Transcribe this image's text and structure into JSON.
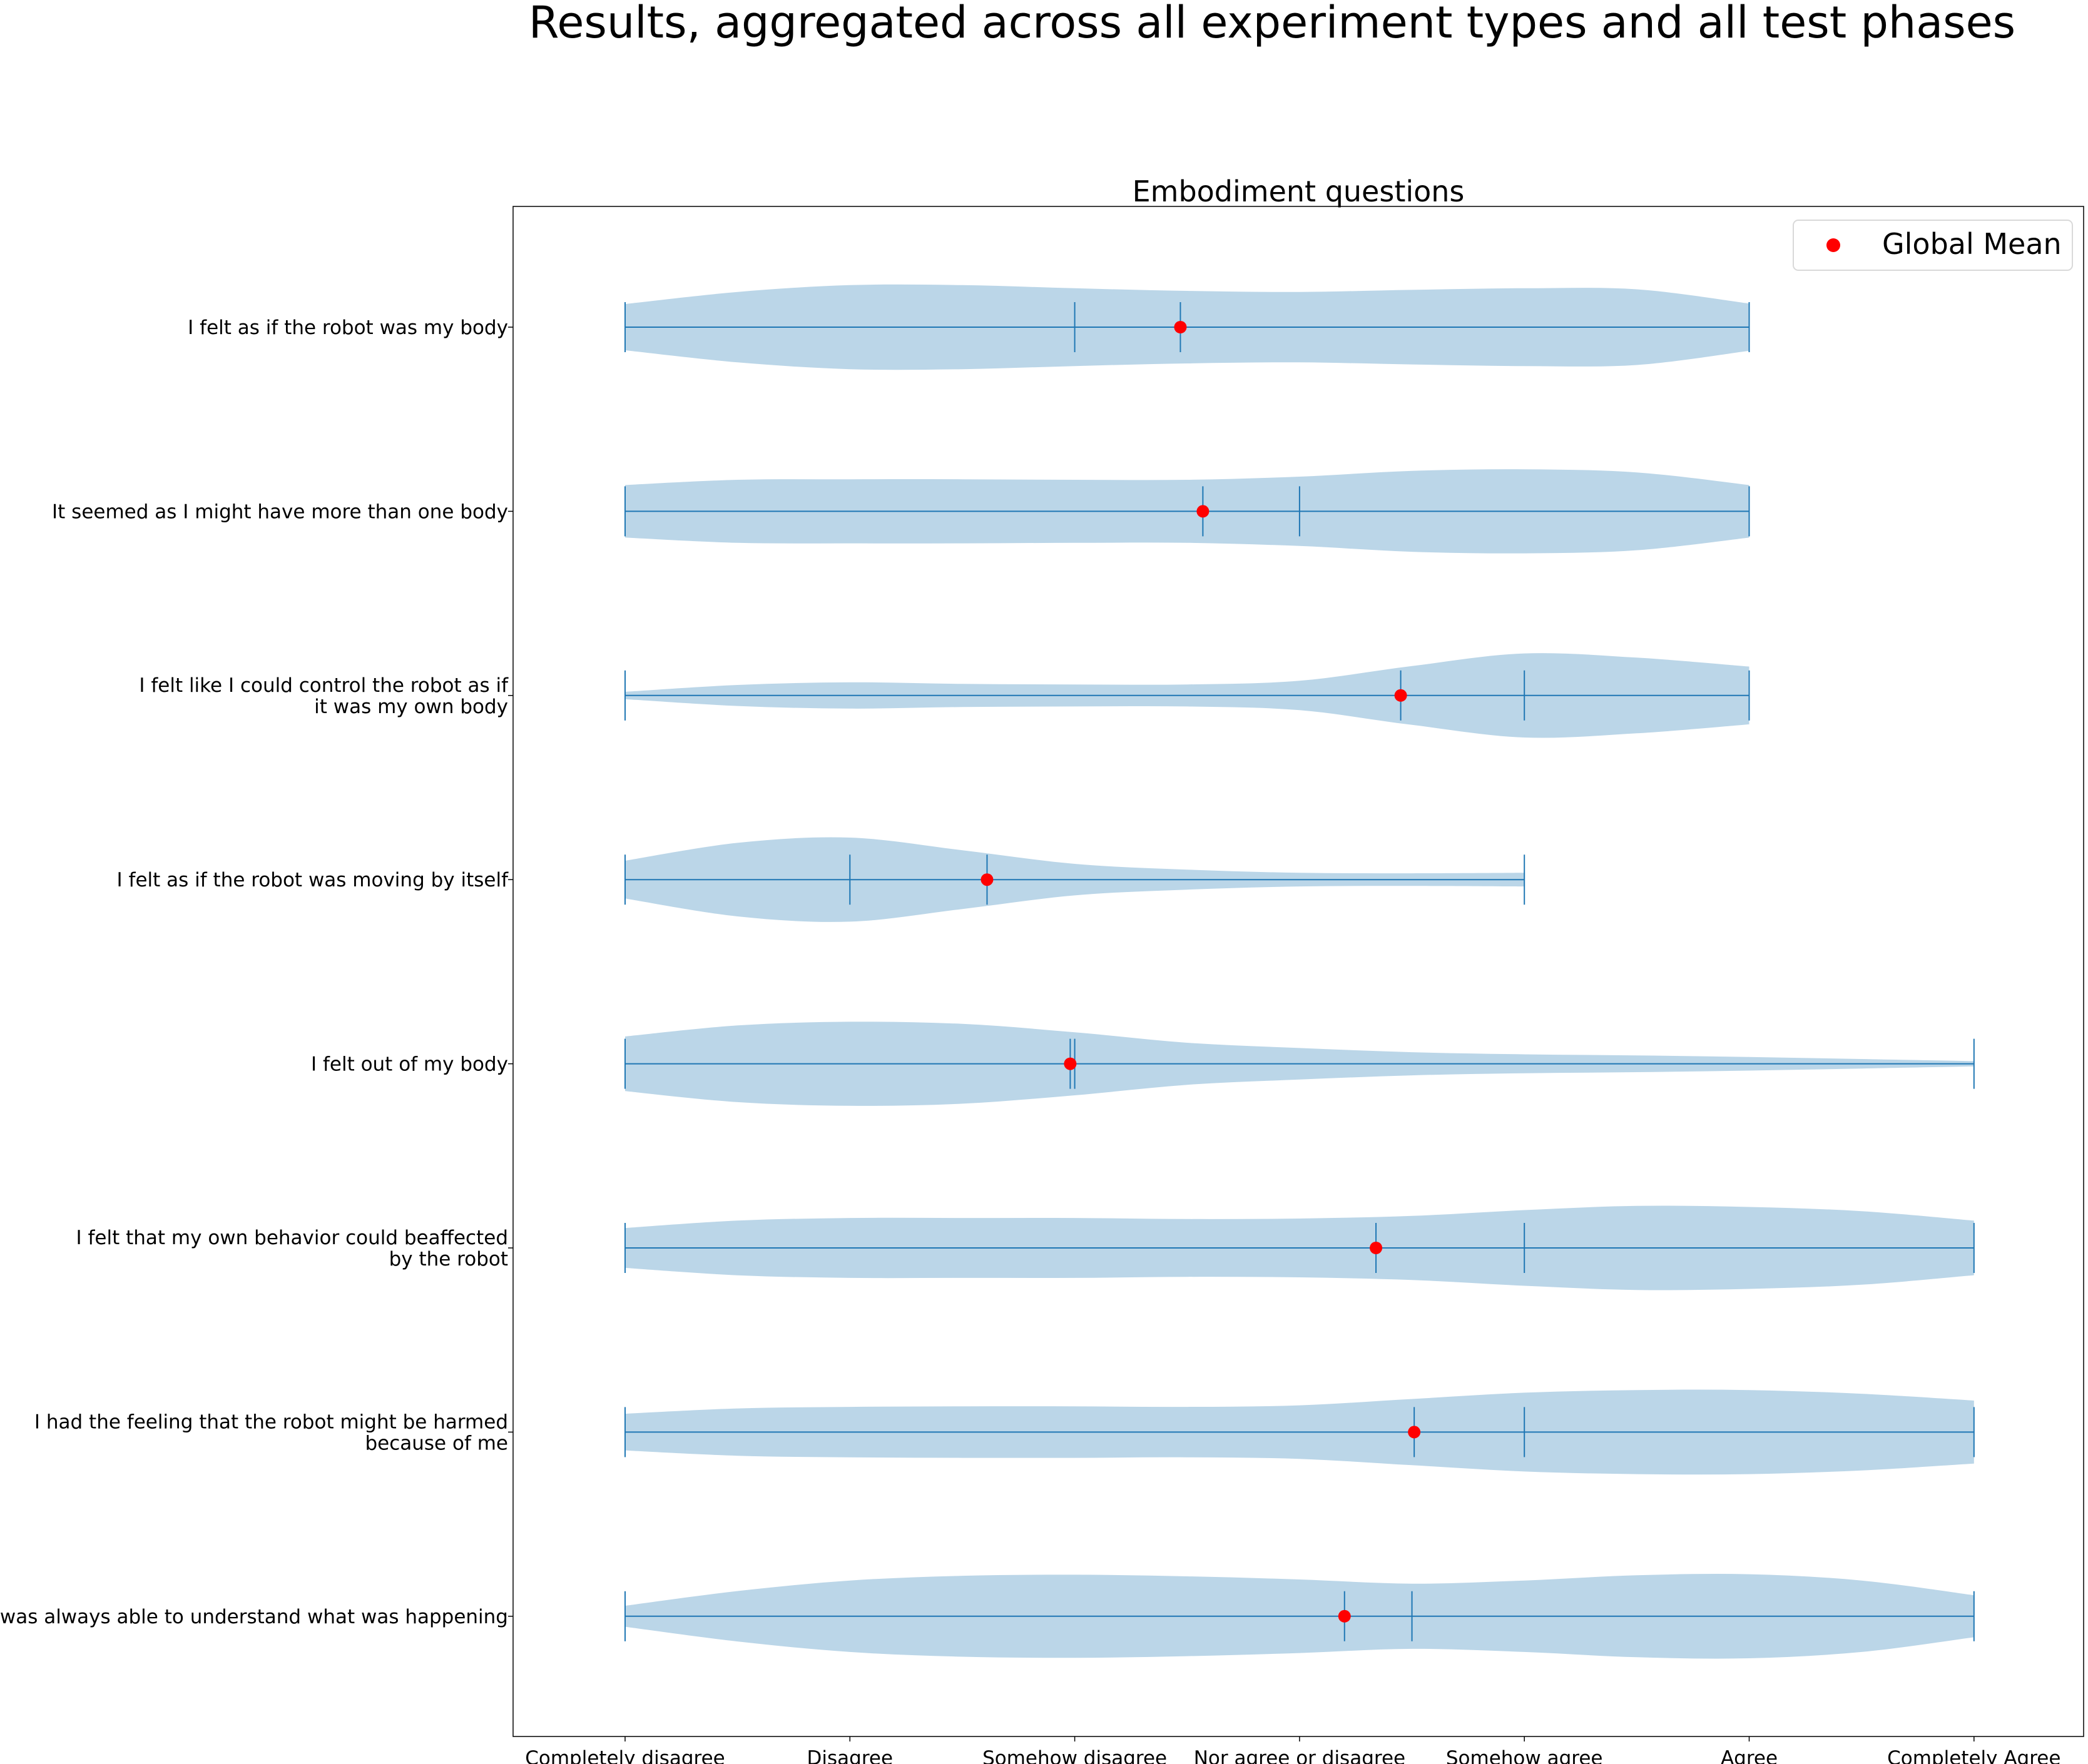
{
  "chart_data": {
    "type": "violin",
    "suptitle": "Results, aggregated across all experiment types and all test phases",
    "title": "Embodiment questions",
    "orientation": "horizontal",
    "x_categories": [
      "Completely disagree",
      "Disagree",
      "Somehow disagree",
      "Nor agree or disagree",
      "Somehow agree",
      "Agree",
      "Completely Agree"
    ],
    "xlim": [
      -0.5,
      6.5
    ],
    "legend": {
      "label": "Global Mean",
      "placement": "top-right"
    },
    "colors": {
      "violin": "#1f77b4",
      "violin_alpha": 0.3,
      "line": "#1f77b4",
      "mean": "#ff0000"
    },
    "questions": [
      {
        "label_lines": [
          "I felt as if the robot was my body"
        ],
        "min": 0,
        "max": 5,
        "median": 2,
        "mean": 2.47,
        "density_x": [
          0,
          0.5,
          1,
          1.5,
          2,
          2.5,
          3,
          3.5,
          4,
          4.5,
          5
        ],
        "density_w": [
          0.44,
          0.67,
          0.8,
          0.8,
          0.74,
          0.69,
          0.67,
          0.71,
          0.74,
          0.72,
          0.45
        ]
      },
      {
        "label_lines": [
          "It seemed as I might have more than one body"
        ],
        "min": 0,
        "max": 5,
        "median": 3,
        "mean": 2.57,
        "density_x": [
          0,
          0.5,
          1,
          1.5,
          2,
          2.5,
          3,
          3.5,
          4,
          4.5,
          5
        ],
        "density_w": [
          0.5,
          0.6,
          0.61,
          0.61,
          0.6,
          0.6,
          0.66,
          0.77,
          0.8,
          0.74,
          0.5
        ]
      },
      {
        "label_lines": [
          "I felt like I could control the robot as if",
          "it was my own body"
        ],
        "min": 0,
        "max": 5,
        "median": 4,
        "mean": 3.45,
        "density_x": [
          0,
          0.5,
          1,
          1.5,
          2,
          2.5,
          3,
          3.5,
          4,
          4.5,
          5
        ],
        "density_w": [
          0.07,
          0.2,
          0.25,
          0.22,
          0.21,
          0.21,
          0.28,
          0.56,
          0.8,
          0.72,
          0.55
        ]
      },
      {
        "label_lines": [
          "I felt as if the robot was moving by itself"
        ],
        "min": 0,
        "max": 4,
        "median": 1,
        "mean": 1.61,
        "density_x": [
          0,
          0.5,
          1,
          1.5,
          2,
          2.5,
          3,
          3.5,
          4
        ],
        "density_w": [
          0.36,
          0.7,
          0.8,
          0.56,
          0.3,
          0.19,
          0.13,
          0.12,
          0.13
        ]
      },
      {
        "label_lines": [
          "I felt out of my body"
        ],
        "min": 0,
        "max": 6,
        "median": 2,
        "mean": 1.98,
        "density_x": [
          0,
          0.5,
          1,
          1.5,
          2,
          2.5,
          3,
          3.5,
          4,
          4.5,
          5,
          5.5,
          6
        ],
        "density_w": [
          0.52,
          0.73,
          0.8,
          0.76,
          0.6,
          0.4,
          0.3,
          0.22,
          0.18,
          0.16,
          0.13,
          0.09,
          0.05
        ]
      },
      {
        "label_lines": [
          "I felt that my own behavior could beaffected",
          "by the robot"
        ],
        "min": 0,
        "max": 6,
        "median": 4,
        "mean": 3.34,
        "density_x": [
          0,
          0.5,
          1,
          1.5,
          2,
          2.5,
          3,
          3.5,
          4,
          4.5,
          5,
          5.5,
          6
        ],
        "density_w": [
          0.38,
          0.52,
          0.57,
          0.57,
          0.57,
          0.55,
          0.56,
          0.61,
          0.72,
          0.8,
          0.78,
          0.7,
          0.52
        ]
      },
      {
        "label_lines": [
          "I had the feeling that the robot might be harmed",
          "because of me"
        ],
        "min": 0,
        "max": 6,
        "median": 4,
        "mean": 3.51,
        "density_x": [
          0,
          0.5,
          1,
          1.5,
          2,
          2.5,
          3,
          3.5,
          4,
          4.5,
          5,
          5.5,
          6
        ],
        "density_w": [
          0.35,
          0.45,
          0.48,
          0.49,
          0.49,
          0.48,
          0.51,
          0.63,
          0.75,
          0.8,
          0.8,
          0.73,
          0.6
        ]
      },
      {
        "label_lines": [
          "I was always able to understand what was happening"
        ],
        "min": 0,
        "max": 6,
        "median": 3.5,
        "mean": 3.2,
        "density_x": [
          0,
          0.5,
          1,
          1.5,
          2,
          2.5,
          3,
          3.5,
          4,
          4.5,
          5,
          5.5,
          6
        ],
        "density_w": [
          0.2,
          0.48,
          0.68,
          0.77,
          0.79,
          0.76,
          0.7,
          0.62,
          0.68,
          0.78,
          0.8,
          0.68,
          0.4
        ]
      }
    ]
  }
}
